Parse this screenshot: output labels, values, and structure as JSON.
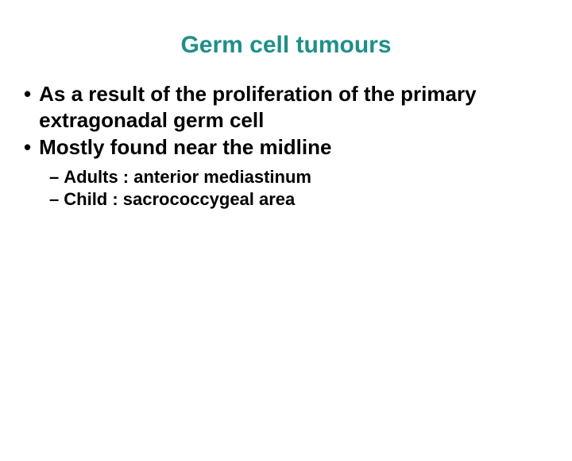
{
  "title": {
    "text": "Germ cell tumours",
    "color": "#1f8f8a",
    "fontsize": 30
  },
  "bullets": {
    "l1_fontsize": 26,
    "l2_fontsize": 22,
    "items": [
      {
        "text": "As a result of the proliferation of the primary extragonadal germ cell"
      },
      {
        "text": "Mostly found near the midline"
      }
    ],
    "subitems": [
      {
        "text": "Adults : anterior mediastinum"
      },
      {
        "text": "Child : sacrococcygeal area"
      }
    ]
  },
  "colors": {
    "background": "#ffffff",
    "text": "#000000"
  }
}
